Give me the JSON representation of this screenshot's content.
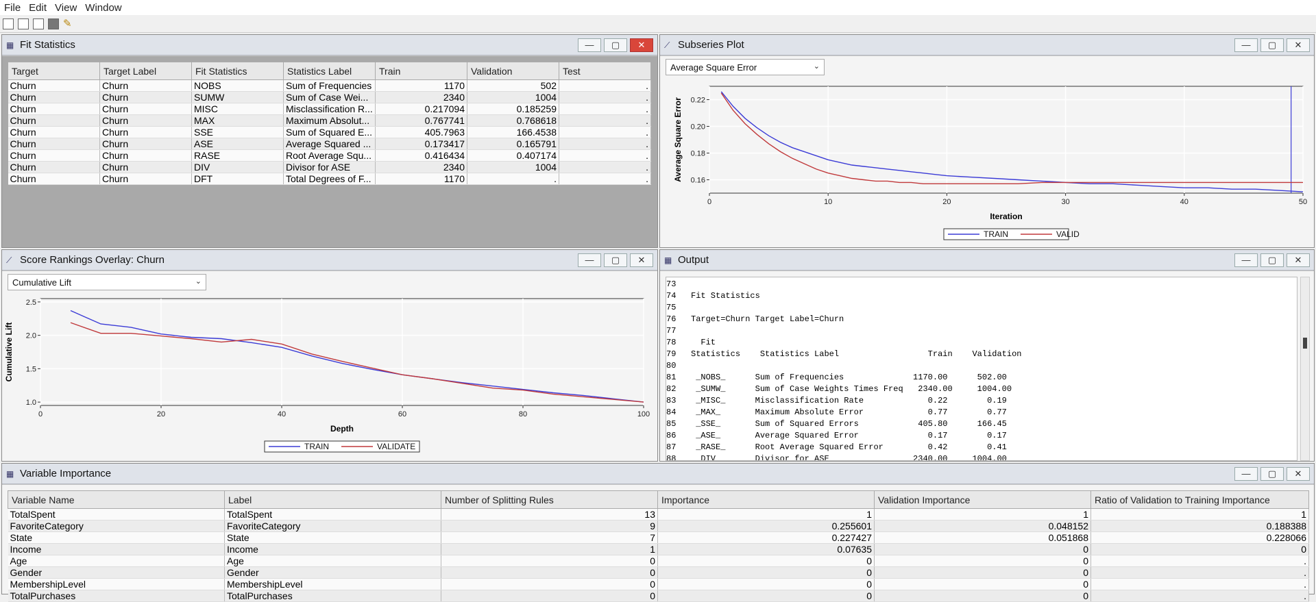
{
  "menu": [
    "File",
    "Edit",
    "View",
    "Window"
  ],
  "colors": {
    "train": "#3b3bd6",
    "valid": "#c0393b"
  },
  "fit_window": {
    "title": "Fit Statistics",
    "columns": [
      "Target",
      "Target Label",
      "Fit Statistics",
      "Statistics Label",
      "Train",
      "Validation",
      "Test"
    ],
    "rows": [
      [
        "Churn",
        "Churn",
        "NOBS",
        "Sum of Frequencies",
        "1170",
        "502",
        "."
      ],
      [
        "Churn",
        "Churn",
        "SUMW",
        "Sum of Case Wei...",
        "2340",
        "1004",
        "."
      ],
      [
        "Churn",
        "Churn",
        "MISC",
        "Misclassification R...",
        "0.217094",
        "0.185259",
        "."
      ],
      [
        "Churn",
        "Churn",
        "MAX",
        "Maximum Absolut...",
        "0.767741",
        "0.768618",
        "."
      ],
      [
        "Churn",
        "Churn",
        "SSE",
        "Sum of Squared E...",
        "405.7963",
        "166.4538",
        "."
      ],
      [
        "Churn",
        "Churn",
        "ASE",
        "Average Squared ...",
        "0.173417",
        "0.165791",
        "."
      ],
      [
        "Churn",
        "Churn",
        "RASE",
        "Root Average Squ...",
        "0.416434",
        "0.407174",
        "."
      ],
      [
        "Churn",
        "Churn",
        "DIV",
        "Divisor for ASE",
        "2340",
        "1004",
        "."
      ],
      [
        "Churn",
        "Churn",
        "DFT",
        "Total Degrees of F...",
        "1170",
        ".",
        "."
      ]
    ]
  },
  "subseries_window": {
    "title": "Subseries Plot",
    "dropdown_value": "Average Square Error"
  },
  "score_window": {
    "title": "Score Rankings Overlay: Churn",
    "dropdown_value": "Cumulative Lift"
  },
  "output_window": {
    "title": "Output",
    "lines": [
      "73",
      "74   Fit Statistics",
      "75",
      "76   Target=Churn Target Label=Churn",
      "77",
      "78     Fit",
      "79   Statistics    Statistics Label                  Train    Validation",
      "80",
      "81    _NOBS_      Sum of Frequencies              1170.00      502.00",
      "82    _SUMW_      Sum of Case Weights Times Freq   2340.00     1004.00",
      "83    _MISC_      Misclassification Rate             0.22        0.19",
      "84    _MAX_       Maximum Absolute Error             0.77        0.77",
      "85    _SSE_       Sum of Squared Errors            405.80      166.45",
      "86    _ASE_       Average Squared Error              0.17        0.17",
      "87    _RASE_      Root Average Squared Error         0.42        0.41",
      "88    _DIV_       Divisor for ASE                 2340.00     1004.00"
    ]
  },
  "varimp_window": {
    "title": "Variable Importance",
    "columns": [
      "Variable Name",
      "Label",
      "Number of Splitting Rules",
      "Importance",
      "Validation Importance",
      "Ratio of Validation to Training Importance"
    ],
    "rows": [
      [
        "TotalSpent",
        "TotalSpent",
        "13",
        "1",
        "1",
        "1"
      ],
      [
        "FavoriteCategory",
        "FavoriteCategory",
        "9",
        "0.255601",
        "0.048152",
        "0.188388"
      ],
      [
        "State",
        "State",
        "7",
        "0.227427",
        "0.051868",
        "0.228066"
      ],
      [
        "Income",
        "Income",
        "1",
        "0.07635",
        "0",
        "0"
      ],
      [
        "Age",
        "Age",
        "0",
        "0",
        "0",
        "."
      ],
      [
        "Gender",
        "Gender",
        "0",
        "0",
        "0",
        "."
      ],
      [
        "MembershipLevel",
        "MembershipLevel",
        "0",
        "0",
        "0",
        "."
      ],
      [
        "TotalPurchases",
        "TotalPurchases",
        "0",
        "0",
        "0",
        "."
      ]
    ]
  },
  "chart_data": [
    {
      "type": "line",
      "title": "",
      "xlabel": "Iteration",
      "ylabel": "Average Square Error",
      "xlim": [
        0,
        50
      ],
      "ylim": [
        0.15,
        0.23
      ],
      "xticks": [
        "0",
        "10",
        "20",
        "30",
        "40",
        "50"
      ],
      "yticks": [
        "0.16",
        "0.18",
        "0.20",
        "0.22"
      ],
      "grid": true,
      "legend": "bottom",
      "marker_x": 49,
      "series": [
        {
          "name": "TRAIN",
          "x": [
            1,
            2,
            3,
            4,
            5,
            6,
            7,
            8,
            9,
            10,
            11,
            12,
            13,
            14,
            15,
            16,
            17,
            18,
            19,
            20,
            22,
            24,
            26,
            28,
            30,
            32,
            34,
            36,
            38,
            40,
            42,
            44,
            46,
            48,
            50
          ],
          "y": [
            0.226,
            0.215,
            0.206,
            0.199,
            0.193,
            0.188,
            0.184,
            0.181,
            0.178,
            0.175,
            0.173,
            0.171,
            0.17,
            0.169,
            0.168,
            0.167,
            0.166,
            0.165,
            0.164,
            0.163,
            0.162,
            0.161,
            0.16,
            0.159,
            0.158,
            0.157,
            0.157,
            0.156,
            0.155,
            0.154,
            0.154,
            0.153,
            0.153,
            0.152,
            0.151
          ]
        },
        {
          "name": "VALID",
          "x": [
            1,
            2,
            3,
            4,
            5,
            6,
            7,
            8,
            9,
            10,
            11,
            12,
            13,
            14,
            15,
            16,
            17,
            18,
            19,
            20,
            22,
            24,
            26,
            28,
            30,
            32,
            34,
            36,
            38,
            40,
            42,
            44,
            46,
            48,
            50
          ],
          "y": [
            0.225,
            0.212,
            0.202,
            0.194,
            0.187,
            0.181,
            0.176,
            0.172,
            0.168,
            0.165,
            0.163,
            0.161,
            0.16,
            0.159,
            0.159,
            0.158,
            0.158,
            0.157,
            0.157,
            0.157,
            0.157,
            0.157,
            0.157,
            0.158,
            0.158,
            0.158,
            0.158,
            0.158,
            0.158,
            0.158,
            0.158,
            0.158,
            0.158,
            0.158,
            0.158
          ]
        }
      ]
    },
    {
      "type": "line",
      "title": "",
      "xlabel": "Depth",
      "ylabel": "Cumulative Lift",
      "xlim": [
        0,
        100
      ],
      "ylim": [
        0.95,
        2.55
      ],
      "xticks": [
        "0",
        "20",
        "40",
        "60",
        "80",
        "100"
      ],
      "yticks": [
        "1.0",
        "1.5",
        "2.0",
        "2.5"
      ],
      "grid": true,
      "legend": "bottom",
      "series": [
        {
          "name": "TRAIN",
          "x": [
            5,
            10,
            15,
            20,
            25,
            30,
            35,
            40,
            45,
            50,
            55,
            60,
            65,
            70,
            75,
            80,
            85,
            90,
            95,
            100
          ],
          "y": [
            2.37,
            2.17,
            2.12,
            2.02,
            1.97,
            1.95,
            1.89,
            1.82,
            1.69,
            1.58,
            1.49,
            1.41,
            1.35,
            1.29,
            1.24,
            1.19,
            1.14,
            1.1,
            1.05,
            1.0
          ]
        },
        {
          "name": "VALIDATE",
          "x": [
            5,
            10,
            15,
            20,
            25,
            30,
            35,
            40,
            45,
            50,
            55,
            60,
            65,
            70,
            75,
            80,
            85,
            90,
            95,
            100
          ],
          "y": [
            2.19,
            2.03,
            2.03,
            1.99,
            1.95,
            1.9,
            1.94,
            1.87,
            1.72,
            1.61,
            1.51,
            1.41,
            1.35,
            1.28,
            1.21,
            1.18,
            1.12,
            1.08,
            1.04,
            1.0
          ]
        }
      ]
    }
  ]
}
